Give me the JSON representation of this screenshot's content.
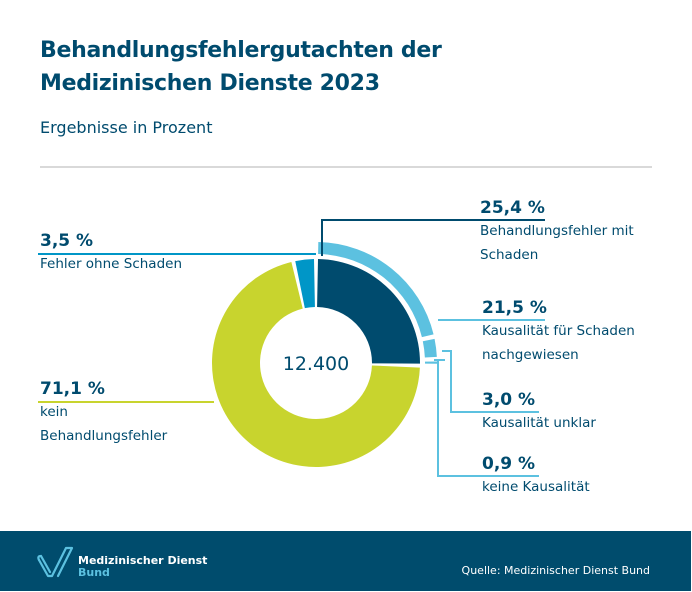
{
  "header": {
    "title_line1": "Behandlungsfehlergutachten der",
    "title_line2": "Medizinischen Dienste 2023",
    "subtitle": "Ergebnisse in Prozent"
  },
  "chart_data": {
    "type": "pie",
    "variant": "donut-with-outer-breakdown-ring",
    "title": "Behandlungsfehlergutachten der Medizinischen Dienste 2023",
    "subtitle": "Ergebnisse in Prozent",
    "center_label": "12.400",
    "unit": "%",
    "inner_ring": [
      {
        "label": "Behandlungsfehler mit Schaden",
        "value": 25.4,
        "display": "25,4 %",
        "color": "#004b6e"
      },
      {
        "label": "kein Behandlungsfehler",
        "value": 71.1,
        "display": "71,1 %",
        "color": "#c8d42e"
      },
      {
        "label": "Fehler ohne Schaden",
        "value": 3.5,
        "display": "3,5 %",
        "color": "#0096c7"
      }
    ],
    "outer_ring": {
      "parent": "Behandlungsfehler mit Schaden",
      "segments": [
        {
          "label": "Kausalität für Schaden nachgewiesen",
          "value": 21.5,
          "display": "21,5 %",
          "color": "#5cc1e0"
        },
        {
          "label": "Kausalität unklar",
          "value": 3.0,
          "display": "3,0 %",
          "color": "#5cc1e0"
        },
        {
          "label": "keine Kausalität",
          "value": 0.9,
          "display": "0,9 %",
          "color": "#5cc1e0"
        }
      ]
    }
  },
  "labels": {
    "fehler_ohne_schaden": {
      "pct": "3,5 %",
      "text": "Fehler ohne Schaden"
    },
    "kein_fehler": {
      "pct": "71,1 %",
      "line1": "kein",
      "line2": "Behandlungsfehler"
    },
    "mit_schaden": {
      "pct": "25,4 %",
      "line1": "Behandlungsfehler mit",
      "line2": "Schaden"
    },
    "kausal_nachgewiesen": {
      "pct": "21,5 %",
      "line1": "Kausalität für Schaden",
      "line2": "nachgewiesen"
    },
    "kausal_unklar": {
      "pct": "3,0 %",
      "text": "Kausalität unklar"
    },
    "keine_kausal": {
      "pct": "0,9 %",
      "text": "keine Kausalität"
    }
  },
  "footer": {
    "logo_line1": "Medizinischer Dienst",
    "logo_line2": "Bund",
    "source": "Quelle: Medizinischer Dienst Bund",
    "logo_icon": "checkmark-logo-icon",
    "background": "#004c6d"
  }
}
